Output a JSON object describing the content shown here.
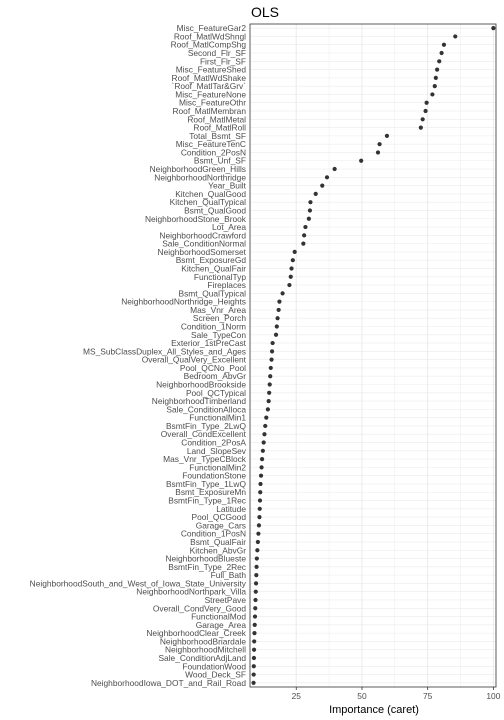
{
  "chart_data": {
    "type": "scatter",
    "title": "OLS",
    "xlabel": "Importance (caret)",
    "ylabel": "",
    "xlim": [
      7.4,
      101
    ],
    "xticks": [
      25,
      50,
      75,
      100
    ],
    "grid": true,
    "point_color": "#333333",
    "gridline_color": "#ebebeb",
    "panel_border_color": "#333333",
    "categories": [
      "Misc_FeatureGar2",
      "Roof_MatlWdShngl",
      "Roof_MatlCompShg",
      "Second_Flr_SF",
      "First_Flr_SF",
      "Misc_FeatureShed",
      "Roof_MatlWdShake",
      "`Roof_MatlTar&Grv`",
      "Misc_FeatureNone",
      "Misc_FeatureOthr",
      "Roof_MatlMembran",
      "Roof_MatlMetal",
      "Roof_MatlRoll",
      "Total_Bsmt_SF",
      "Misc_FeatureTenC",
      "Condition_2PosN",
      "Bsmt_Unf_SF",
      "NeighborhoodGreen_Hills",
      "NeighborhoodNorthridge",
      "Year_Built",
      "Kitchen_QualGood",
      "Kitchen_QualTypical",
      "Bsmt_QualGood",
      "NeighborhoodStone_Brook",
      "Lot_Area",
      "NeighborhoodCrawford",
      "Sale_ConditionNormal",
      "NeighborhoodSomerset",
      "Bsmt_ExposureGd",
      "Kitchen_QualFair",
      "FunctionalTyp",
      "Fireplaces",
      "Bsmt_QualTypical",
      "NeighborhoodNorthridge_Heights",
      "Mas_Vnr_Area",
      "Screen_Porch",
      "Condition_1Norm",
      "Sale_TypeCon",
      "Exterior_1stPreCast",
      "MS_SubClassDuplex_All_Styles_and_Ages",
      "Overall_QualVery_Excellent",
      "Pool_QCNo_Pool",
      "Bedroom_AbvGr",
      "NeighborhoodBrookside",
      "Pool_QCTypical",
      "NeighborhoodTimberland",
      "Sale_ConditionAlloca",
      "FunctionalMin1",
      "BsmtFin_Type_2LwQ",
      "Overall_CondExcellent",
      "Condition_2PosA",
      "Land_SlopeSev",
      "Mas_Vnr_TypeCBlock",
      "FunctionalMin2",
      "FoundationStone",
      "BsmtFin_Type_1LwQ",
      "Bsmt_ExposureMn",
      "BsmtFin_Type_1Rec",
      "Latitude",
      "Pool_QCGood",
      "Garage_Cars",
      "Condition_1PosN",
      "Bsmt_QualFair",
      "Kitchen_AbvGr",
      "NeighborhoodBlueste",
      "BsmtFin_Type_2Rec",
      "Full_Bath",
      "NeighborhoodSouth_and_West_of_Iowa_State_University",
      "NeighborhoodNorthpark_Villa",
      "StreetPave",
      "Overall_CondVery_Good",
      "FunctionalMod",
      "Garage_Area",
      "NeighborhoodClear_Creek",
      "NeighborhoodBriardale",
      "NeighborhoodMitchell",
      "Sale_ConditionAdjLand",
      "FoundationWood",
      "Wood_Deck_SF",
      "NeighborhoodIowa_DOT_and_Rail_Road"
    ],
    "values": [
      100,
      85.5,
      81.2,
      80.3,
      79.4,
      78.6,
      78.1,
      77.7,
      76.8,
      74.6,
      74.2,
      73.1,
      72.4,
      59.5,
      56.7,
      56.1,
      49.7,
      39.6,
      36.7,
      34.9,
      32.4,
      30.4,
      30.2,
      29.8,
      28.5,
      28,
      27.7,
      24.4,
      23.7,
      23.2,
      22.9,
      22.4,
      19.8,
      18.6,
      18.3,
      17.9,
      17.6,
      17.3,
      16,
      15.8,
      15.6,
      15.3,
      15.1,
      14.9,
      14.7,
      14.5,
      14.2,
      13.6,
      13.2,
      12.9,
      12.6,
      12.3,
      12,
      11.8,
      11.6,
      11.4,
      11.3,
      11.2,
      11.1,
      11,
      10.8,
      10.6,
      10.4,
      10.2,
      10,
      9.9,
      9.8,
      9.7,
      9.6,
      9.5,
      9.4,
      9.3,
      9.2,
      9.1,
      9,
      8.95,
      8.9,
      8.85,
      8.8,
      8.75
    ]
  }
}
